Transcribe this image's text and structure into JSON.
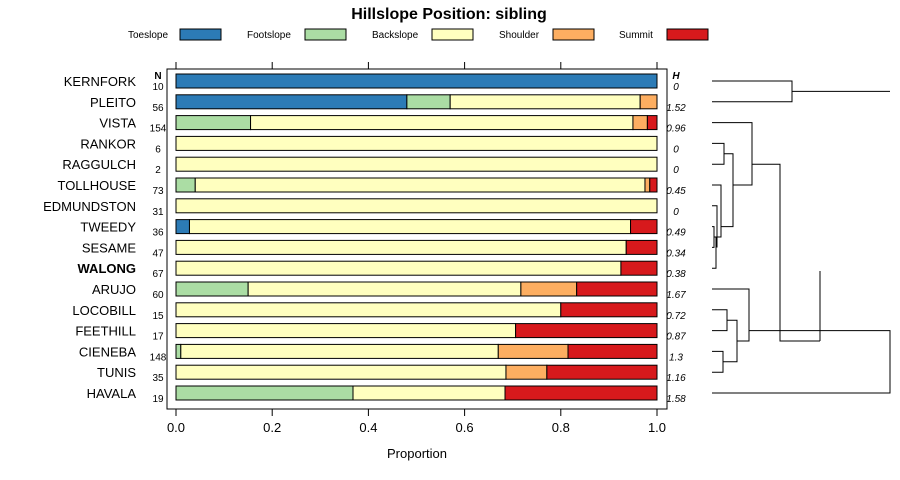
{
  "chart_data": {
    "type": "bar",
    "stacked": true,
    "orientation": "horizontal",
    "title": "Hillslope Position: sibling",
    "xlabel": "Proportion",
    "xlim": [
      0,
      1
    ],
    "xticks": [
      "0.0",
      "0.2",
      "0.4",
      "0.6",
      "0.8",
      "1.0"
    ],
    "n_header": "N",
    "h_header": "H",
    "legend": [
      {
        "name": "Toeslope",
        "color": "#2c7bb6"
      },
      {
        "name": "Footslope",
        "color": "#abdda4"
      },
      {
        "name": "Backslope",
        "color": "#ffffbf"
      },
      {
        "name": "Shoulder",
        "color": "#fdae61"
      },
      {
        "name": "Summit",
        "color": "#d7191c"
      }
    ],
    "rows": [
      {
        "name": "KERNFORK",
        "n": "10",
        "h": "0",
        "values": [
          1.0,
          0,
          0,
          0,
          0
        ],
        "bold": false
      },
      {
        "name": "PLEITO",
        "n": "56",
        "h": "1.52",
        "values": [
          0.48,
          0.09,
          0.395,
          0.035,
          0
        ],
        "bold": false
      },
      {
        "name": "VISTA",
        "n": "154",
        "h": "0.96",
        "values": [
          0,
          0.155,
          0.795,
          0.03,
          0.02
        ],
        "bold": false
      },
      {
        "name": "RANKOR",
        "n": "6",
        "h": "0",
        "values": [
          0,
          0,
          1.0,
          0,
          0
        ],
        "bold": false
      },
      {
        "name": "RAGGULCH",
        "n": "2",
        "h": "0",
        "values": [
          0,
          0,
          1.0,
          0,
          0
        ],
        "bold": false
      },
      {
        "name": "TOLLHOUSE",
        "n": "73",
        "h": "0.45",
        "values": [
          0,
          0.04,
          0.935,
          0.01,
          0.015
        ],
        "bold": false
      },
      {
        "name": "EDMUNDSTON",
        "n": "31",
        "h": "0",
        "values": [
          0,
          0,
          1.0,
          0,
          0
        ],
        "bold": false
      },
      {
        "name": "TWEEDY",
        "n": "36",
        "h": "0.49",
        "values": [
          0.028,
          0,
          0.917,
          0,
          0.055
        ],
        "bold": false
      },
      {
        "name": "SESAME",
        "n": "47",
        "h": "0.34",
        "values": [
          0,
          0,
          0.936,
          0,
          0.064
        ],
        "bold": false
      },
      {
        "name": "WALONG",
        "n": "67",
        "h": "0.38",
        "values": [
          0,
          0,
          0.925,
          0,
          0.075
        ],
        "bold": true
      },
      {
        "name": "ARUJO",
        "n": "60",
        "h": "1.67",
        "values": [
          0,
          0.15,
          0.567,
          0.116,
          0.167
        ],
        "bold": false
      },
      {
        "name": "LOCOBILL",
        "n": "15",
        "h": "0.72",
        "values": [
          0,
          0,
          0.8,
          0,
          0.2
        ],
        "bold": false
      },
      {
        "name": "FEETHILL",
        "n": "17",
        "h": "0.87",
        "values": [
          0,
          0,
          0.706,
          0,
          0.294
        ],
        "bold": false
      },
      {
        "name": "CIENEBA",
        "n": "148",
        "h": "1.3",
        "values": [
          0,
          0.01,
          0.66,
          0.145,
          0.185
        ],
        "bold": false
      },
      {
        "name": "TUNIS",
        "n": "35",
        "h": "1.16",
        "values": [
          0,
          0,
          0.686,
          0.085,
          0.229
        ],
        "bold": false
      },
      {
        "name": "HAVALA",
        "n": "19",
        "h": "1.58",
        "values": [
          0,
          0.368,
          0.316,
          0,
          0.316
        ],
        "bold": false
      }
    ]
  }
}
